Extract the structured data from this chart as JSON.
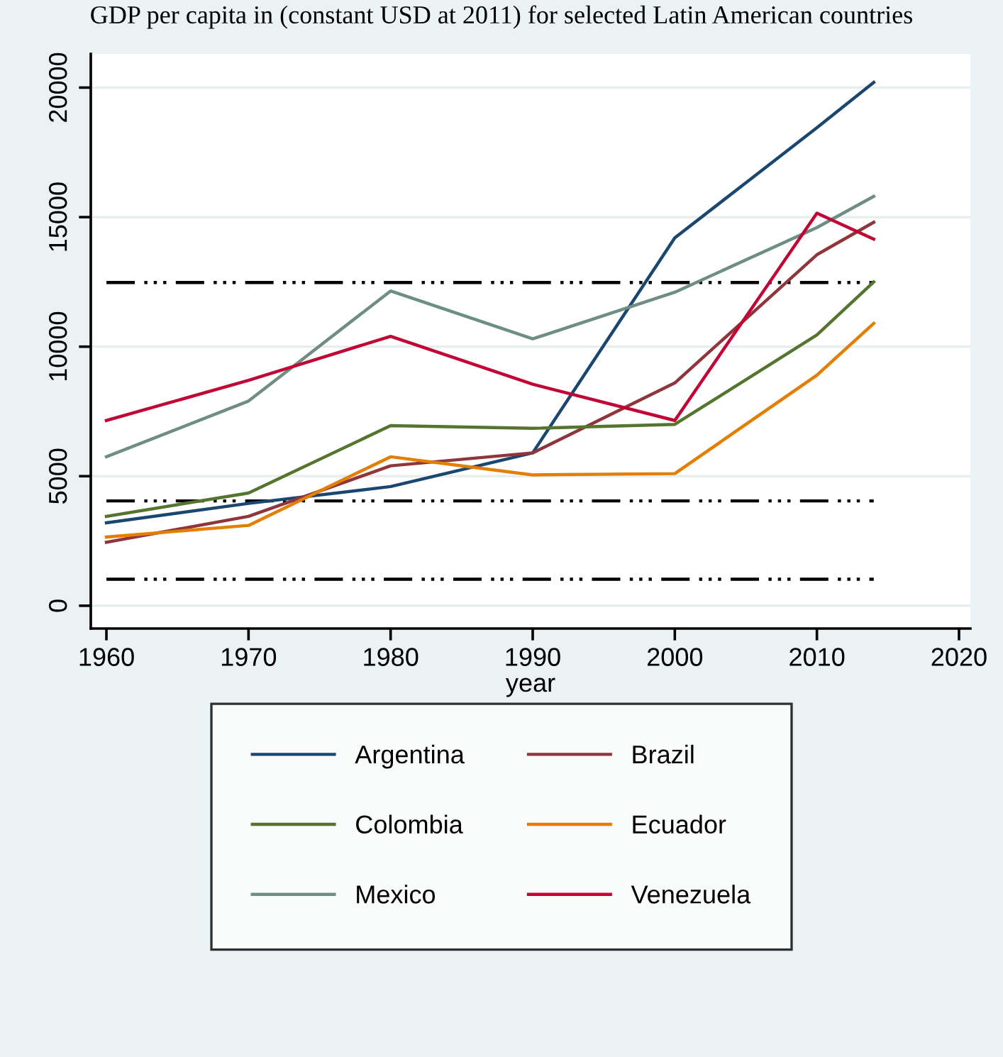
{
  "chart_data": {
    "type": "line",
    "title": "GDP per capita in (constant USD at 2011) for selected Latin American countries",
    "xlabel": "year",
    "x": [
      1960,
      1970,
      1980,
      1990,
      2000,
      2010,
      2014
    ],
    "series": [
      {
        "name": "Argentina",
        "color": "#1a476f",
        "values": [
          3200,
          3950,
          4600,
          5900,
          14200,
          18450,
          20200
        ]
      },
      {
        "name": "Brazil",
        "color": "#90353b",
        "values": [
          2450,
          3450,
          5400,
          5900,
          8600,
          13550,
          14800
        ]
      },
      {
        "name": "Colombia",
        "color": "#55752f",
        "values": [
          3450,
          4350,
          6950,
          6850,
          7000,
          10450,
          12500
        ]
      },
      {
        "name": "Ecuador",
        "color": "#e37e00",
        "values": [
          2650,
          3100,
          5750,
          5050,
          5100,
          8900,
          10900
        ]
      },
      {
        "name": "Mexico",
        "color": "#6e8e84",
        "values": [
          5750,
          7900,
          12150,
          10300,
          12100,
          14600,
          15800
        ]
      },
      {
        "name": "Venezuela",
        "color": "#c10534",
        "values": [
          7150,
          8700,
          10400,
          8550,
          7150,
          15150,
          14150
        ]
      }
    ],
    "ref_lines": [
      {
        "axis": "y",
        "value": 12475,
        "color": "#000000",
        "line_style": "dashdot"
      },
      {
        "axis": "y",
        "value": 4045,
        "color": "#000000",
        "line_style": "dashdot"
      },
      {
        "axis": "y",
        "value": 1025,
        "color": "#000000",
        "line_style": "dashdot"
      }
    ],
    "xlim": [
      1958.9,
      2020.8
    ],
    "ylim": [
      -880,
      21300
    ],
    "xticks": [
      1960,
      1970,
      1980,
      1990,
      2000,
      2010,
      2020
    ],
    "yticks": [
      0,
      5000,
      10000,
      15000,
      20000
    ],
    "grid": "y",
    "legend": "bottom",
    "marker": "none",
    "line_style": "solid"
  }
}
